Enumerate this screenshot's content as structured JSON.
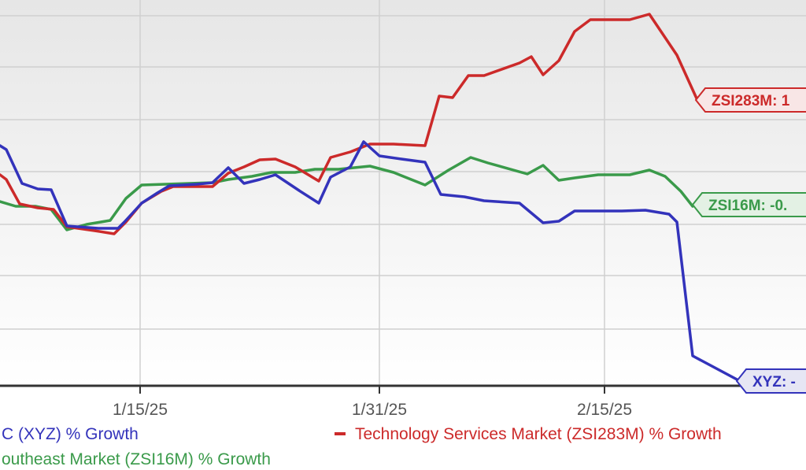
{
  "chart_data": {
    "type": "line",
    "x_tick_labels": [
      "1/15/25",
      "1/31/25",
      "2/15/25"
    ],
    "grid": true,
    "series": [
      {
        "name": "C (XYZ) % Growth",
        "color": "#3333bb",
        "callout": "XYZ: -",
        "values": [
          [
            0,
            185
          ],
          [
            8,
            190
          ],
          [
            28,
            233
          ],
          [
            48,
            240
          ],
          [
            65,
            241
          ],
          [
            85,
            287
          ],
          [
            125,
            290
          ],
          [
            150,
            290
          ],
          [
            158,
            282
          ],
          [
            180,
            258
          ],
          [
            200,
            245
          ],
          [
            215,
            236
          ],
          [
            250,
            234
          ],
          [
            270,
            232
          ],
          [
            290,
            213
          ],
          [
            310,
            233
          ],
          [
            330,
            228
          ],
          [
            350,
            222
          ],
          [
            380,
            242
          ],
          [
            405,
            258
          ],
          [
            420,
            225
          ],
          [
            445,
            212
          ],
          [
            462,
            180
          ],
          [
            482,
            198
          ],
          [
            510,
            202
          ],
          [
            540,
            206
          ],
          [
            560,
            247
          ],
          [
            590,
            250
          ],
          [
            615,
            255
          ],
          [
            660,
            258
          ],
          [
            690,
            283
          ],
          [
            710,
            281
          ],
          [
            730,
            268
          ],
          [
            790,
            268
          ],
          [
            820,
            267
          ],
          [
            850,
            272
          ],
          [
            860,
            282
          ],
          [
            880,
            452
          ],
          [
            940,
            484
          ]
        ]
      },
      {
        "name": "Technology Services Market (ZSI283M) % Growth",
        "color": "#cc2a2a",
        "callout": "ZSI283M: 1",
        "values": [
          [
            0,
            222
          ],
          [
            8,
            228
          ],
          [
            25,
            259
          ],
          [
            48,
            264
          ],
          [
            68,
            266
          ],
          [
            85,
            288
          ],
          [
            120,
            293
          ],
          [
            145,
            297
          ],
          [
            160,
            282
          ],
          [
            180,
            258
          ],
          [
            205,
            243
          ],
          [
            220,
            237
          ],
          [
            270,
            237
          ],
          [
            290,
            220
          ],
          [
            310,
            212
          ],
          [
            330,
            203
          ],
          [
            350,
            202
          ],
          [
            375,
            212
          ],
          [
            405,
            230
          ],
          [
            420,
            200
          ],
          [
            445,
            193
          ],
          [
            470,
            183
          ],
          [
            500,
            183
          ],
          [
            540,
            185
          ],
          [
            558,
            122
          ],
          [
            575,
            124
          ],
          [
            595,
            96
          ],
          [
            615,
            96
          ],
          [
            660,
            80
          ],
          [
            675,
            72
          ],
          [
            690,
            95
          ],
          [
            710,
            77
          ],
          [
            730,
            40
          ],
          [
            750,
            25
          ],
          [
            800,
            25
          ],
          [
            825,
            18
          ],
          [
            860,
            70
          ],
          [
            885,
            125
          ]
        ]
      },
      {
        "name": "outheast Market (ZSI16M) % Growth",
        "color": "#3a9a4a",
        "callout": "ZSI16M: -0.",
        "values": [
          [
            0,
            256
          ],
          [
            20,
            262
          ],
          [
            45,
            262
          ],
          [
            65,
            266
          ],
          [
            85,
            292
          ],
          [
            110,
            285
          ],
          [
            140,
            280
          ],
          [
            160,
            252
          ],
          [
            180,
            235
          ],
          [
            210,
            234
          ],
          [
            270,
            232
          ],
          [
            290,
            228
          ],
          [
            320,
            224
          ],
          [
            345,
            219
          ],
          [
            375,
            219
          ],
          [
            400,
            215
          ],
          [
            430,
            215
          ],
          [
            470,
            211
          ],
          [
            500,
            219
          ],
          [
            540,
            235
          ],
          [
            570,
            216
          ],
          [
            598,
            200
          ],
          [
            620,
            207
          ],
          [
            670,
            221
          ],
          [
            690,
            210
          ],
          [
            710,
            229
          ],
          [
            730,
            226
          ],
          [
            760,
            222
          ],
          [
            800,
            222
          ],
          [
            825,
            216
          ],
          [
            845,
            224
          ],
          [
            865,
            243
          ],
          [
            880,
            262
          ]
        ]
      }
    ]
  }
}
